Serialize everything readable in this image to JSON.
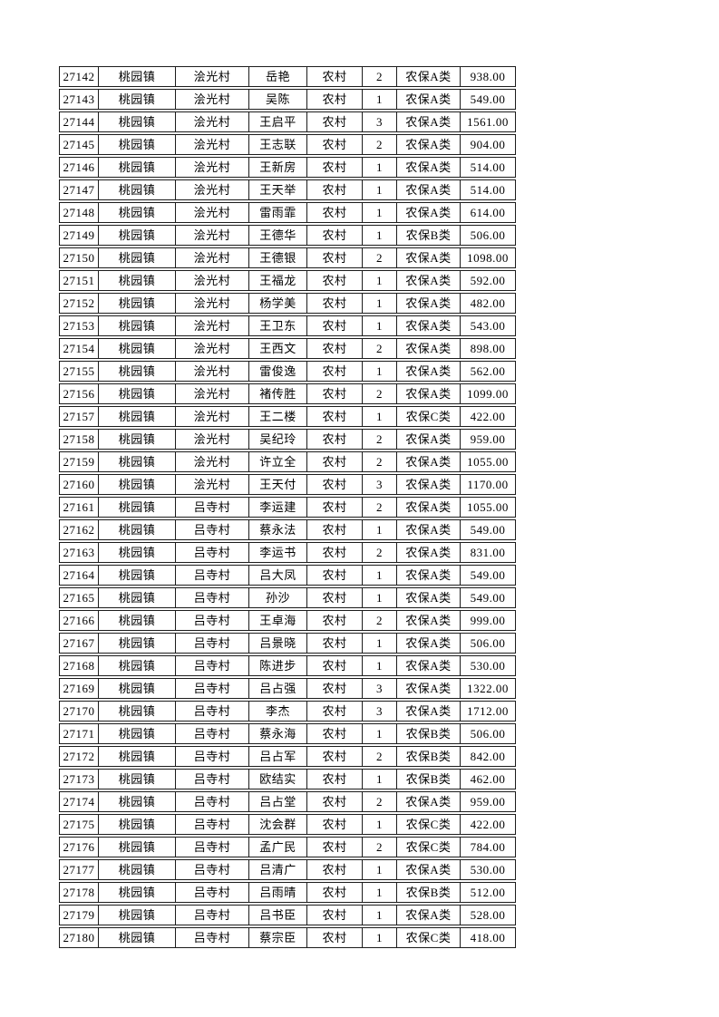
{
  "page": {
    "background_color": "#ffffff",
    "border_color": "#1c1c1c",
    "text_color": "#000000"
  },
  "table": {
    "columns": [
      "record-id",
      "town",
      "village",
      "person-name",
      "residence-type",
      "person-count",
      "insurance-category",
      "amount"
    ],
    "rows": [
      [
        "27142",
        "桃园镇",
        "浍光村",
        "岳艳",
        "农村",
        "2",
        "农保A类",
        "938.00"
      ],
      [
        "27143",
        "桃园镇",
        "浍光村",
        "吴陈",
        "农村",
        "1",
        "农保A类",
        "549.00"
      ],
      [
        "27144",
        "桃园镇",
        "浍光村",
        "王启平",
        "农村",
        "3",
        "农保A类",
        "1561.00"
      ],
      [
        "27145",
        "桃园镇",
        "浍光村",
        "王志联",
        "农村",
        "2",
        "农保A类",
        "904.00"
      ],
      [
        "27146",
        "桃园镇",
        "浍光村",
        "王新房",
        "农村",
        "1",
        "农保A类",
        "514.00"
      ],
      [
        "27147",
        "桃园镇",
        "浍光村",
        "王天举",
        "农村",
        "1",
        "农保A类",
        "514.00"
      ],
      [
        "27148",
        "桃园镇",
        "浍光村",
        "雷雨霏",
        "农村",
        "1",
        "农保A类",
        "614.00"
      ],
      [
        "27149",
        "桃园镇",
        "浍光村",
        "王德华",
        "农村",
        "1",
        "农保B类",
        "506.00"
      ],
      [
        "27150",
        "桃园镇",
        "浍光村",
        "王德银",
        "农村",
        "2",
        "农保A类",
        "1098.00"
      ],
      [
        "27151",
        "桃园镇",
        "浍光村",
        "王福龙",
        "农村",
        "1",
        "农保A类",
        "592.00"
      ],
      [
        "27152",
        "桃园镇",
        "浍光村",
        "杨学美",
        "农村",
        "1",
        "农保A类",
        "482.00"
      ],
      [
        "27153",
        "桃园镇",
        "浍光村",
        "王卫东",
        "农村",
        "1",
        "农保A类",
        "543.00"
      ],
      [
        "27154",
        "桃园镇",
        "浍光村",
        "王西文",
        "农村",
        "2",
        "农保A类",
        "898.00"
      ],
      [
        "27155",
        "桃园镇",
        "浍光村",
        "雷俊逸",
        "农村",
        "1",
        "农保A类",
        "562.00"
      ],
      [
        "27156",
        "桃园镇",
        "浍光村",
        "褚传胜",
        "农村",
        "2",
        "农保A类",
        "1099.00"
      ],
      [
        "27157",
        "桃园镇",
        "浍光村",
        "王二楼",
        "农村",
        "1",
        "农保C类",
        "422.00"
      ],
      [
        "27158",
        "桃园镇",
        "浍光村",
        "吴纪玲",
        "农村",
        "2",
        "农保A类",
        "959.00"
      ],
      [
        "27159",
        "桃园镇",
        "浍光村",
        "许立全",
        "农村",
        "2",
        "农保A类",
        "1055.00"
      ],
      [
        "27160",
        "桃园镇",
        "浍光村",
        "王天付",
        "农村",
        "3",
        "农保A类",
        "1170.00"
      ],
      [
        "27161",
        "桃园镇",
        "吕寺村",
        "李运建",
        "农村",
        "2",
        "农保A类",
        "1055.00"
      ],
      [
        "27162",
        "桃园镇",
        "吕寺村",
        "蔡永法",
        "农村",
        "1",
        "农保A类",
        "549.00"
      ],
      [
        "27163",
        "桃园镇",
        "吕寺村",
        "李运书",
        "农村",
        "2",
        "农保A类",
        "831.00"
      ],
      [
        "27164",
        "桃园镇",
        "吕寺村",
        "吕大凤",
        "农村",
        "1",
        "农保A类",
        "549.00"
      ],
      [
        "27165",
        "桃园镇",
        "吕寺村",
        "孙沙",
        "农村",
        "1",
        "农保A类",
        "549.00"
      ],
      [
        "27166",
        "桃园镇",
        "吕寺村",
        "王卓海",
        "农村",
        "2",
        "农保A类",
        "999.00"
      ],
      [
        "27167",
        "桃园镇",
        "吕寺村",
        "吕景晓",
        "农村",
        "1",
        "农保A类",
        "506.00"
      ],
      [
        "27168",
        "桃园镇",
        "吕寺村",
        "陈进步",
        "农村",
        "1",
        "农保A类",
        "530.00"
      ],
      [
        "27169",
        "桃园镇",
        "吕寺村",
        "吕占强",
        "农村",
        "3",
        "农保A类",
        "1322.00"
      ],
      [
        "27170",
        "桃园镇",
        "吕寺村",
        "李杰",
        "农村",
        "3",
        "农保A类",
        "1712.00"
      ],
      [
        "27171",
        "桃园镇",
        "吕寺村",
        "蔡永海",
        "农村",
        "1",
        "农保B类",
        "506.00"
      ],
      [
        "27172",
        "桃园镇",
        "吕寺村",
        "吕占军",
        "农村",
        "2",
        "农保B类",
        "842.00"
      ],
      [
        "27173",
        "桃园镇",
        "吕寺村",
        "欧结实",
        "农村",
        "1",
        "农保B类",
        "462.00"
      ],
      [
        "27174",
        "桃园镇",
        "吕寺村",
        "吕占堂",
        "农村",
        "2",
        "农保A类",
        "959.00"
      ],
      [
        "27175",
        "桃园镇",
        "吕寺村",
        "沈会群",
        "农村",
        "1",
        "农保C类",
        "422.00"
      ],
      [
        "27176",
        "桃园镇",
        "吕寺村",
        "孟广民",
        "农村",
        "2",
        "农保C类",
        "784.00"
      ],
      [
        "27177",
        "桃园镇",
        "吕寺村",
        "吕清广",
        "农村",
        "1",
        "农保A类",
        "530.00"
      ],
      [
        "27178",
        "桃园镇",
        "吕寺村",
        "吕雨晴",
        "农村",
        "1",
        "农保B类",
        "512.00"
      ],
      [
        "27179",
        "桃园镇",
        "吕寺村",
        "吕书臣",
        "农村",
        "1",
        "农保A类",
        "528.00"
      ],
      [
        "27180",
        "桃园镇",
        "吕寺村",
        "蔡宗臣",
        "农村",
        "1",
        "农保C类",
        "418.00"
      ]
    ]
  }
}
